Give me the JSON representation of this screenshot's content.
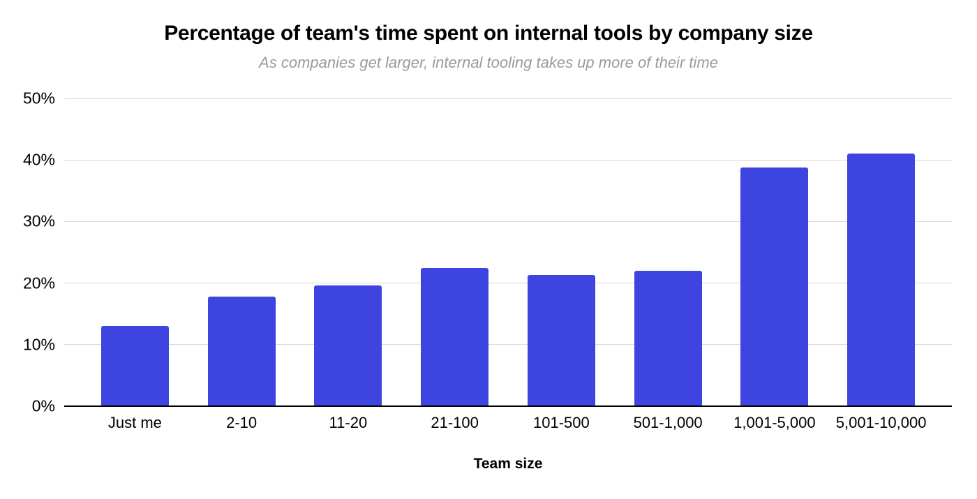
{
  "chart_data": {
    "type": "bar",
    "title": "Percentage of team's time spent on internal tools by company size",
    "subtitle": "As companies get larger, internal tooling takes up more of their time",
    "xlabel": "Team size",
    "ylabel": "",
    "categories": [
      "Just me",
      "2-10",
      "11-20",
      "21-100",
      "101-500",
      "501-1,000",
      "1,001-5,000",
      "5,001-10,000"
    ],
    "values": [
      13,
      17.8,
      19.6,
      22.5,
      21.3,
      22,
      38.8,
      41
    ],
    "value_unit": "%",
    "ylim": [
      0,
      50
    ],
    "ytick_step": 10,
    "ytick_labels": [
      "0%",
      "10%",
      "20%",
      "30%",
      "40%",
      "50%"
    ],
    "grid": true,
    "legend_position": "none",
    "colors": {
      "bar": "#3d44e0",
      "gridline": "#d9d9d9",
      "axis": "#000000",
      "title": "#000000",
      "subtitle": "#9a9a9a",
      "tick_label": "#000000"
    }
  }
}
